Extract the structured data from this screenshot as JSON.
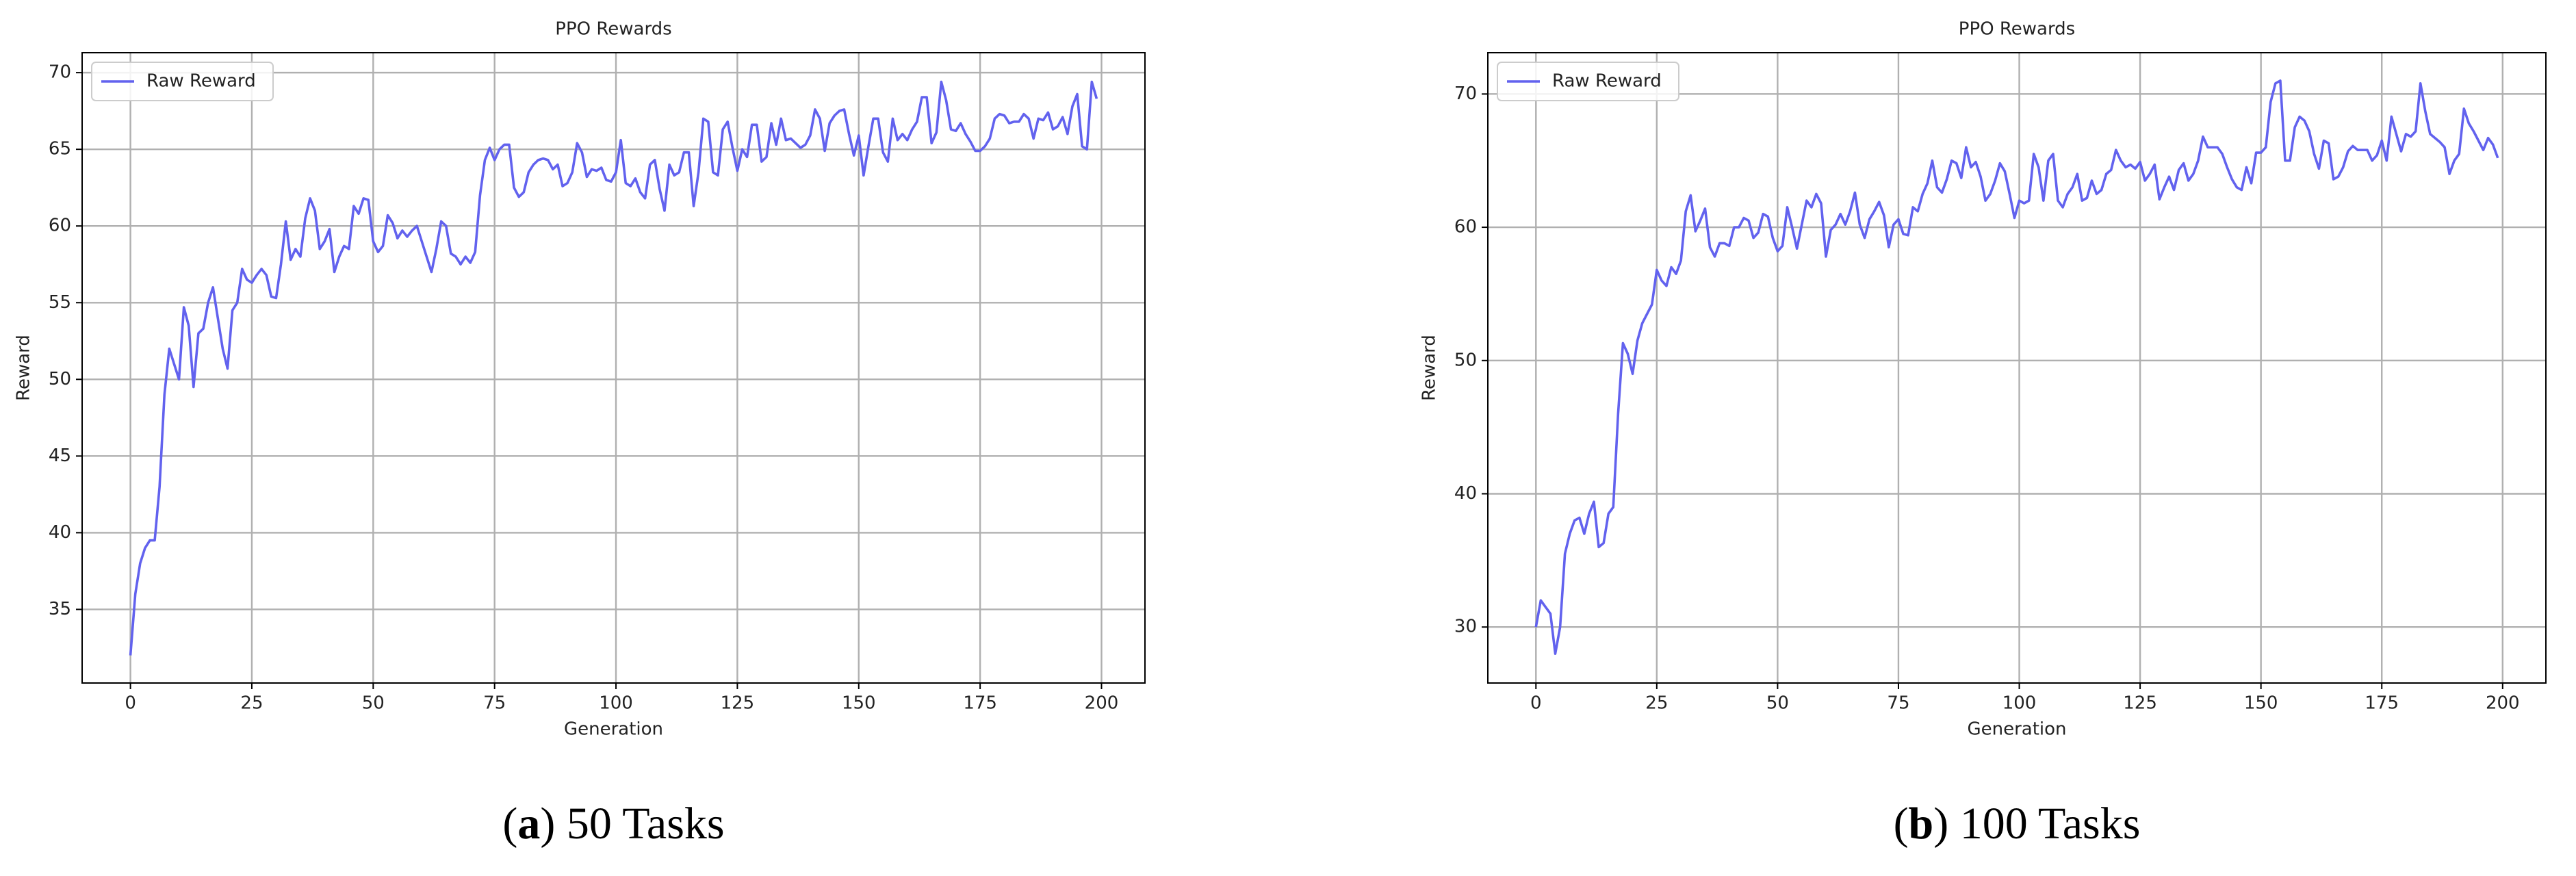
{
  "chart_data": [
    {
      "type": "line",
      "title": "PPO Rewards",
      "x_label": "Generation",
      "y_label": "Reward",
      "caption": {
        "label": "a",
        "text": "50 Tasks"
      },
      "legend": "upper left",
      "grid": true,
      "xlim": [
        -9.95,
        208.95
      ],
      "xticks": [
        0,
        25,
        50,
        75,
        100,
        125,
        150,
        175,
        200
      ],
      "ylim": [
        30.2,
        71.3
      ],
      "yticks": [
        35,
        40,
        45,
        50,
        55,
        60,
        65,
        70
      ],
      "x": [
        0,
        1,
        2,
        3,
        4,
        5,
        6,
        7,
        8,
        9,
        10,
        11,
        12,
        13,
        14,
        15,
        16,
        17,
        18,
        19,
        20,
        21,
        22,
        23,
        24,
        25,
        26,
        27,
        28,
        29,
        30,
        31,
        32,
        33,
        34,
        35,
        36,
        37,
        38,
        39,
        40,
        41,
        42,
        43,
        44,
        45,
        46,
        47,
        48,
        49,
        50,
        51,
        52,
        53,
        54,
        55,
        56,
        57,
        58,
        59,
        60,
        61,
        62,
        63,
        64,
        65,
        66,
        67,
        68,
        69,
        70,
        71,
        72,
        73,
        74,
        75,
        76,
        77,
        78,
        79,
        80,
        81,
        82,
        83,
        84,
        85,
        86,
        87,
        88,
        89,
        90,
        91,
        92,
        93,
        94,
        95,
        96,
        97,
        98,
        99,
        100,
        101,
        102,
        103,
        104,
        105,
        106,
        107,
        108,
        109,
        110,
        111,
        112,
        113,
        114,
        115,
        116,
        117,
        118,
        119,
        120,
        121,
        122,
        123,
        124,
        125,
        126,
        127,
        128,
        129,
        130,
        131,
        132,
        133,
        134,
        135,
        136,
        137,
        138,
        139,
        140,
        141,
        142,
        143,
        144,
        145,
        146,
        147,
        148,
        149,
        150,
        151,
        152,
        153,
        154,
        155,
        156,
        157,
        158,
        159,
        160,
        161,
        162,
        163,
        164,
        165,
        166,
        167,
        168,
        169,
        170,
        171,
        172,
        173,
        174,
        175,
        176,
        177,
        178,
        179,
        180,
        181,
        182,
        183,
        184,
        185,
        186,
        187,
        188,
        189,
        190,
        191,
        192,
        193,
        194,
        195,
        196,
        197,
        198,
        199
      ],
      "series": [
        {
          "name": "Raw Reward",
          "color": "#6262ee",
          "values": [
            32,
            36,
            38,
            39,
            39.5,
            39.5,
            43,
            49,
            52,
            51,
            50,
            54.7,
            53.5,
            49.5,
            53,
            53.3,
            55,
            56,
            54,
            52,
            50.7,
            54.5,
            55,
            57.2,
            56.5,
            56.3,
            56.8,
            57.2,
            56.8,
            55.4,
            55.3,
            57.5,
            60.3,
            57.8,
            58.5,
            58,
            60.5,
            61.8,
            61,
            58.5,
            59,
            59.8,
            57,
            58,
            58.7,
            58.5,
            61.3,
            60.8,
            61.8,
            61.7,
            59,
            58.3,
            58.7,
            60.7,
            60.2,
            59.2,
            59.7,
            59.3,
            59.7,
            60,
            59,
            58,
            57,
            58.5,
            60.3,
            60,
            58.2,
            58,
            57.5,
            58,
            57.6,
            58.3,
            62,
            64.3,
            65.1,
            64.3,
            65,
            65.3,
            65.3,
            62.5,
            61.9,
            62.2,
            63.5,
            64,
            64.3,
            64.4,
            64.3,
            63.7,
            64,
            62.6,
            62.8,
            63.5,
            65.4,
            64.8,
            63.2,
            63.7,
            63.6,
            63.8,
            63,
            62.9,
            63.5,
            65.6,
            62.8,
            62.6,
            63.1,
            62.2,
            61.8,
            64,
            64.3,
            62.4,
            61,
            64,
            63.3,
            63.5,
            64.8,
            64.8,
            61.3,
            63.5,
            67,
            66.8,
            63.5,
            63.3,
            66.3,
            66.8,
            65.1,
            63.6,
            65,
            64.5,
            66.6,
            66.6,
            64.2,
            64.5,
            66.7,
            65.3,
            67,
            65.6,
            65.7,
            65.4,
            65.1,
            65.3,
            65.9,
            67.6,
            67,
            64.9,
            66.7,
            67.2,
            67.5,
            67.6,
            66,
            64.6,
            65.9,
            63.3,
            65.2,
            67,
            67,
            64.8,
            64.2,
            67,
            65.6,
            66,
            65.6,
            66.3,
            66.8,
            68.4,
            68.4,
            65.4,
            66.1,
            69.4,
            68.2,
            66.3,
            66.2,
            66.7,
            66,
            65.5,
            64.9,
            64.9,
            65.2,
            65.7,
            67,
            67.3,
            67.2,
            66.7,
            66.8,
            66.8,
            67.3,
            67,
            65.7,
            67,
            66.9,
            67.4,
            66.3,
            66.5,
            67.1,
            66,
            67.8,
            68.6,
            65.2,
            65,
            69.4,
            68.3
          ]
        }
      ]
    },
    {
      "type": "line",
      "title": "PPO Rewards",
      "x_label": "Generation",
      "y_label": "Reward",
      "caption": {
        "label": "b",
        "text": "100 Tasks"
      },
      "legend": "upper left",
      "grid": true,
      "xlim": [
        -9.95,
        208.95
      ],
      "xticks": [
        0,
        25,
        50,
        75,
        100,
        125,
        150,
        175,
        200
      ],
      "ylim": [
        25.8,
        73.1
      ],
      "yticks": [
        30,
        40,
        50,
        60,
        70
      ],
      "x": [
        0,
        1,
        2,
        3,
        4,
        5,
        6,
        7,
        8,
        9,
        10,
        11,
        12,
        13,
        14,
        15,
        16,
        17,
        18,
        19,
        20,
        21,
        22,
        23,
        24,
        25,
        26,
        27,
        28,
        29,
        30,
        31,
        32,
        33,
        34,
        35,
        36,
        37,
        38,
        39,
        40,
        41,
        42,
        43,
        44,
        45,
        46,
        47,
        48,
        49,
        50,
        51,
        52,
        53,
        54,
        55,
        56,
        57,
        58,
        59,
        60,
        61,
        62,
        63,
        64,
        65,
        66,
        67,
        68,
        69,
        70,
        71,
        72,
        73,
        74,
        75,
        76,
        77,
        78,
        79,
        80,
        81,
        82,
        83,
        84,
        85,
        86,
        87,
        88,
        89,
        90,
        91,
        92,
        93,
        94,
        95,
        96,
        97,
        98,
        99,
        100,
        101,
        102,
        103,
        104,
        105,
        106,
        107,
        108,
        109,
        110,
        111,
        112,
        113,
        114,
        115,
        116,
        117,
        118,
        119,
        120,
        121,
        122,
        123,
        124,
        125,
        126,
        127,
        128,
        129,
        130,
        131,
        132,
        133,
        134,
        135,
        136,
        137,
        138,
        139,
        140,
        141,
        142,
        143,
        144,
        145,
        146,
        147,
        148,
        149,
        150,
        151,
        152,
        153,
        154,
        155,
        156,
        157,
        158,
        159,
        160,
        161,
        162,
        163,
        164,
        165,
        166,
        167,
        168,
        169,
        170,
        171,
        172,
        173,
        174,
        175,
        176,
        177,
        178,
        179,
        180,
        181,
        182,
        183,
        184,
        185,
        186,
        187,
        188,
        189,
        190,
        191,
        192,
        193,
        194,
        195,
        196,
        197,
        198,
        199
      ],
      "series": [
        {
          "name": "Raw Reward",
          "color": "#6262ee",
          "values": [
            30,
            32,
            31.5,
            31,
            28,
            30,
            35.5,
            37,
            38,
            38.2,
            37,
            38.5,
            39.4,
            36,
            36.3,
            38.5,
            39,
            46,
            51.3,
            50.5,
            49,
            51.5,
            52.8,
            53.5,
            54.2,
            56.8,
            56,
            55.6,
            57,
            56.5,
            57.5,
            61.2,
            62.4,
            59.7,
            60.5,
            61.4,
            58.5,
            57.8,
            58.8,
            58.8,
            58.6,
            60,
            60,
            60.7,
            60.5,
            59.2,
            59.6,
            61,
            60.8,
            59.2,
            58.2,
            58.6,
            61.5,
            60,
            58.4,
            60.2,
            62,
            61.5,
            62.5,
            61.8,
            57.8,
            59.8,
            60.2,
            61,
            60.2,
            61.2,
            62.6,
            60.2,
            59.2,
            60.6,
            61.2,
            61.9,
            60.9,
            58.5,
            60.2,
            60.6,
            59.5,
            59.4,
            61.5,
            61.2,
            62.5,
            63.3,
            65,
            63,
            62.6,
            63.6,
            65,
            64.8,
            63.7,
            66,
            64.5,
            64.9,
            63.8,
            62,
            62.5,
            63.5,
            64.8,
            64.2,
            62.5,
            60.7,
            62,
            61.8,
            62,
            65.5,
            64.5,
            62,
            65,
            65.5,
            62,
            61.5,
            62.5,
            63,
            64,
            62,
            62.2,
            63.5,
            62.5,
            62.8,
            64,
            64.3,
            65.8,
            65,
            64.5,
            64.7,
            64.4,
            64.9,
            63.5,
            64,
            64.7,
            62.1,
            63,
            63.8,
            62.8,
            64.3,
            64.8,
            63.5,
            64,
            65,
            66.8,
            66,
            66,
            66,
            65.5,
            64.5,
            63.6,
            63,
            62.8,
            64.5,
            63.3,
            65.6,
            65.6,
            66,
            69.4,
            70.8,
            71,
            65,
            65,
            67.5,
            68.3,
            68,
            67.2,
            65.5,
            64.4,
            66.5,
            66.3,
            63.6,
            63.8,
            64.5,
            65.7,
            66.1,
            65.8,
            65.8,
            65.8,
            65,
            65.4,
            66.5,
            65,
            68.3,
            67,
            65.7,
            67,
            66.8,
            67.2,
            70.8,
            68.7,
            67,
            66.7,
            66.4,
            66,
            64,
            65,
            65.5,
            68.9,
            67.8,
            67.2,
            66.5,
            65.8,
            66.7,
            66.2,
            65.2
          ]
        }
      ]
    }
  ]
}
